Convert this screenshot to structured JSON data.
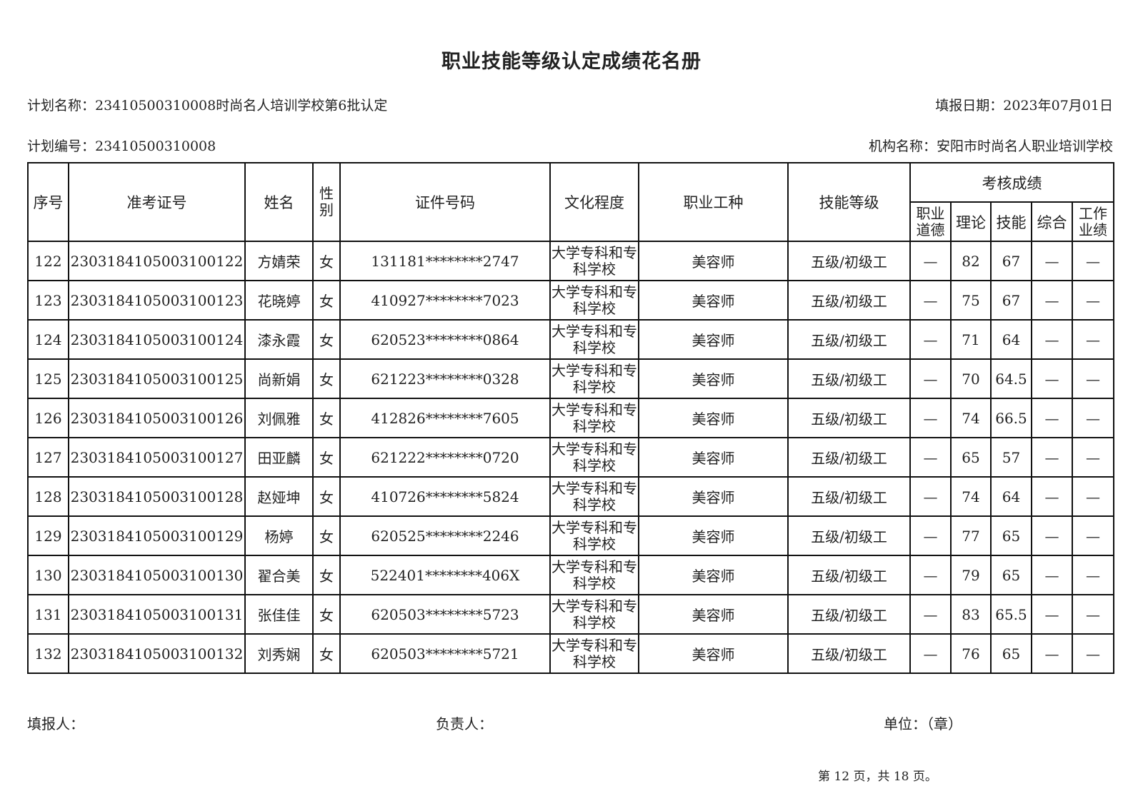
{
  "title": "职业技能等级认定成绩花名册",
  "plan_name": "计划名称：23410500310008时尚名人培训学校第6批认定",
  "report_date": "填报日期：2023年07月01日",
  "plan_number": "计划编号：23410500310008",
  "org_name": "机构名称：安阳市时尚名人职业培训学校",
  "headers": {
    "seq": "序号",
    "exam_id": "准考证号",
    "name": "姓名",
    "gender": "性别",
    "id_no": "证件号码",
    "education": "文化程度",
    "occupation": "职业工种",
    "level": "技能等级",
    "scores": "考核成绩",
    "ethics": "职业道德",
    "theory": "理论",
    "skill": "技能",
    "overall": "综合",
    "performance": "工作业绩"
  },
  "rows": [
    {
      "seq": "122",
      "exam_id": "2303184105003100122",
      "name": "方婧荣",
      "gender": "女",
      "id_no": "131181********2747",
      "education": "大学专科和专科学校",
      "occupation": "美容师",
      "level": "五级/初级工",
      "ethics": "—",
      "theory": "82",
      "skill": "67",
      "overall": "—",
      "performance": "—"
    },
    {
      "seq": "123",
      "exam_id": "2303184105003100123",
      "name": "花晓婷",
      "gender": "女",
      "id_no": "410927********7023",
      "education": "大学专科和专科学校",
      "occupation": "美容师",
      "level": "五级/初级工",
      "ethics": "—",
      "theory": "75",
      "skill": "67",
      "overall": "—",
      "performance": "—"
    },
    {
      "seq": "124",
      "exam_id": "2303184105003100124",
      "name": "漆永霞",
      "gender": "女",
      "id_no": "620523********0864",
      "education": "大学专科和专科学校",
      "occupation": "美容师",
      "level": "五级/初级工",
      "ethics": "—",
      "theory": "71",
      "skill": "64",
      "overall": "—",
      "performance": "—"
    },
    {
      "seq": "125",
      "exam_id": "2303184105003100125",
      "name": "尚新娟",
      "gender": "女",
      "id_no": "621223********0328",
      "education": "大学专科和专科学校",
      "occupation": "美容师",
      "level": "五级/初级工",
      "ethics": "—",
      "theory": "70",
      "skill": "64.5",
      "overall": "—",
      "performance": "—"
    },
    {
      "seq": "126",
      "exam_id": "2303184105003100126",
      "name": "刘佩雅",
      "gender": "女",
      "id_no": "412826********7605",
      "education": "大学专科和专科学校",
      "occupation": "美容师",
      "level": "五级/初级工",
      "ethics": "—",
      "theory": "74",
      "skill": "66.5",
      "overall": "—",
      "performance": "—"
    },
    {
      "seq": "127",
      "exam_id": "2303184105003100127",
      "name": "田亚麟",
      "gender": "女",
      "id_no": "621222********0720",
      "education": "大学专科和专科学校",
      "occupation": "美容师",
      "level": "五级/初级工",
      "ethics": "—",
      "theory": "65",
      "skill": "57",
      "overall": "—",
      "performance": "—"
    },
    {
      "seq": "128",
      "exam_id": "2303184105003100128",
      "name": "赵娅坤",
      "gender": "女",
      "id_no": "410726********5824",
      "education": "大学专科和专科学校",
      "occupation": "美容师",
      "level": "五级/初级工",
      "ethics": "—",
      "theory": "74",
      "skill": "64",
      "overall": "—",
      "performance": "—"
    },
    {
      "seq": "129",
      "exam_id": "2303184105003100129",
      "name": "杨婷",
      "gender": "女",
      "id_no": "620525********2246",
      "education": "大学专科和专科学校",
      "occupation": "美容师",
      "level": "五级/初级工",
      "ethics": "—",
      "theory": "77",
      "skill": "65",
      "overall": "—",
      "performance": "—"
    },
    {
      "seq": "130",
      "exam_id": "2303184105003100130",
      "name": "翟合美",
      "gender": "女",
      "id_no": "522401********406X",
      "education": "大学专科和专科学校",
      "occupation": "美容师",
      "level": "五级/初级工",
      "ethics": "—",
      "theory": "79",
      "skill": "65",
      "overall": "—",
      "performance": "—"
    },
    {
      "seq": "131",
      "exam_id": "2303184105003100131",
      "name": "张佳佳",
      "gender": "女",
      "id_no": "620503********5723",
      "education": "大学专科和专科学校",
      "occupation": "美容师",
      "level": "五级/初级工",
      "ethics": "—",
      "theory": "83",
      "skill": "65.5",
      "overall": "—",
      "performance": "—"
    },
    {
      "seq": "132",
      "exam_id": "2303184105003100132",
      "name": "刘秀娴",
      "gender": "女",
      "id_no": "620503********5721",
      "education": "大学专科和专科学校",
      "occupation": "美容师",
      "level": "五级/初级工",
      "ethics": "—",
      "theory": "76",
      "skill": "65",
      "overall": "—",
      "performance": "—"
    }
  ],
  "footer": {
    "filler": "填报人：",
    "responsible": "负责人：",
    "unit": "单位：（章）"
  },
  "pagination": "第 12 页，共 18 页。"
}
